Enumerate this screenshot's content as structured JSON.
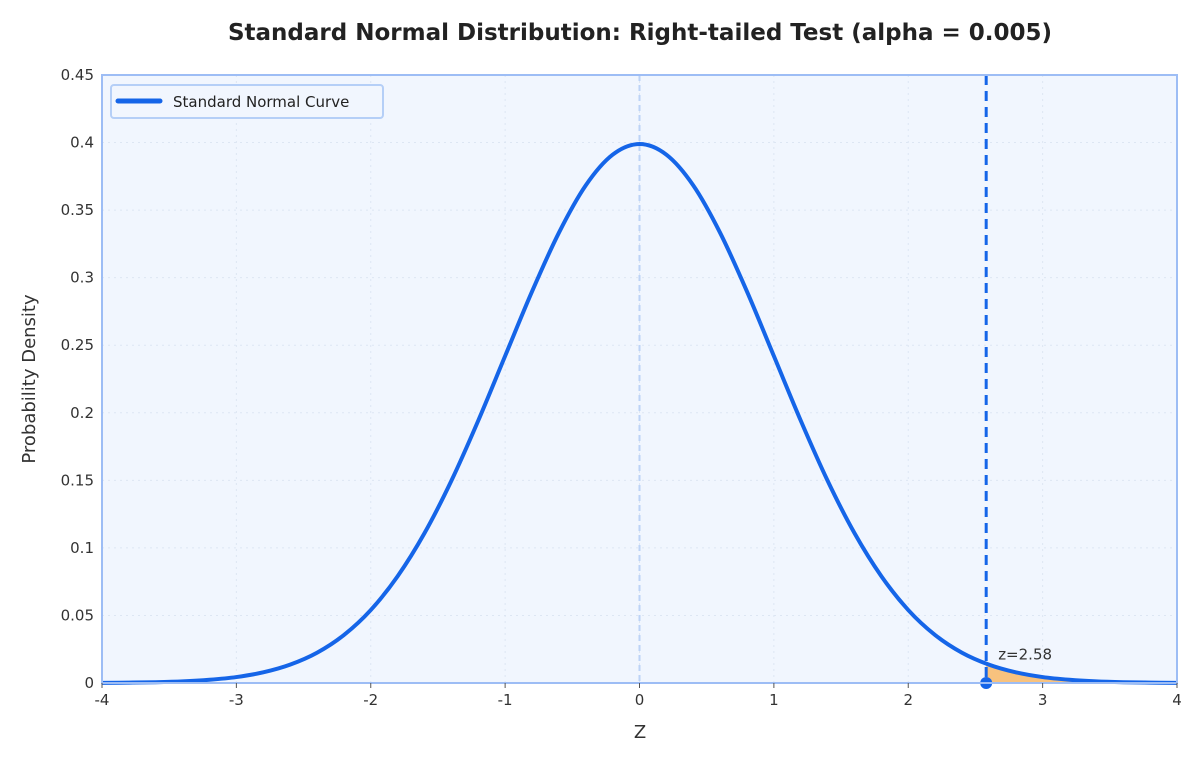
{
  "chart_data": {
    "type": "line",
    "title": "Standard Normal Distribution: Right-tailed Test (alpha = 0.005)",
    "xlabel": "Z",
    "ylabel": "Probability Density",
    "xlim": [
      -4,
      4
    ],
    "ylim": [
      0,
      0.45
    ],
    "xticks": [
      "-4",
      "-3",
      "-2",
      "-1",
      "0",
      "1",
      "2",
      "3",
      "4"
    ],
    "yticks": [
      "0",
      "0.05",
      "0.1",
      "0.15",
      "0.2",
      "0.25",
      "0.3",
      "0.35",
      "0.4",
      "0.45"
    ],
    "grid": true,
    "legend_position": "top-left",
    "series": [
      {
        "name": "Standard Normal Curve",
        "color": "#1565e8",
        "x": [
          -4,
          -3.8,
          -3.6,
          -3.4,
          -3.2,
          -3,
          -2.8,
          -2.6,
          -2.4,
          -2.2,
          -2,
          -1.8,
          -1.6,
          -1.4,
          -1.2,
          -1,
          -0.8,
          -0.6,
          -0.4,
          -0.2,
          0,
          0.2,
          0.4,
          0.6,
          0.8,
          1,
          1.2,
          1.4,
          1.6,
          1.8,
          2,
          2.2,
          2.4,
          2.6,
          2.8,
          3,
          3.2,
          3.4,
          3.6,
          3.8,
          4
        ],
        "y": [
          0.0001,
          0.0003,
          0.0006,
          0.0012,
          0.0024,
          0.0044,
          0.0079,
          0.0136,
          0.0224,
          0.0355,
          0.054,
          0.079,
          0.1109,
          0.1497,
          0.1942,
          0.242,
          0.2897,
          0.3332,
          0.3683,
          0.391,
          0.3989,
          0.391,
          0.3683,
          0.3332,
          0.2897,
          0.242,
          0.1942,
          0.1497,
          0.1109,
          0.079,
          0.054,
          0.0355,
          0.0224,
          0.0136,
          0.0079,
          0.0044,
          0.0024,
          0.0012,
          0.0006,
          0.0003,
          0.0001
        ]
      }
    ],
    "critical_value": 2.58,
    "critical_label": "z=2.58",
    "rejection_region": [
      2.58,
      4
    ],
    "colors": {
      "plot_background": "#f1f6fe",
      "frame": "#9dbdf5",
      "rejection_fill": "#f8c27e",
      "critical_line": "#1565e8",
      "mean_line": "#bcd3f7"
    }
  }
}
